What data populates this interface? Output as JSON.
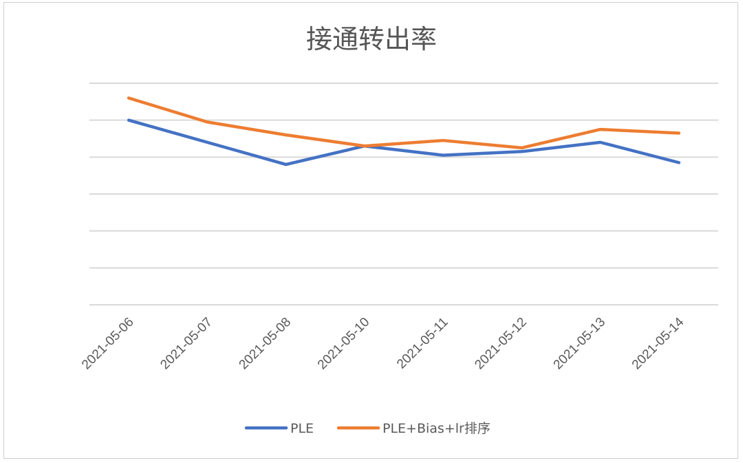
{
  "chart_data": {
    "type": "line",
    "title": "接通转出率",
    "xlabel": "",
    "ylabel": "",
    "categories": [
      "2021-05-06",
      "2021-05-07",
      "2021-05-08",
      "2021-05-10",
      "2021-05-11",
      "2021-05-12",
      "2021-05-13",
      "2021-05-14"
    ],
    "ylim": [
      0,
      6
    ],
    "y_tick_labels_visible": false,
    "grid": true,
    "legend_position": "bottom",
    "series": [
      {
        "name": "PLE",
        "color": "#4472C4",
        "values": [
          5.0,
          4.4,
          3.8,
          4.3,
          4.05,
          4.15,
          4.4,
          3.85
        ]
      },
      {
        "name": "PLE+Bias+lr排序",
        "color": "#ED7D31",
        "values": [
          5.6,
          4.95,
          4.6,
          4.3,
          4.45,
          4.25,
          4.75,
          4.65
        ]
      }
    ]
  }
}
